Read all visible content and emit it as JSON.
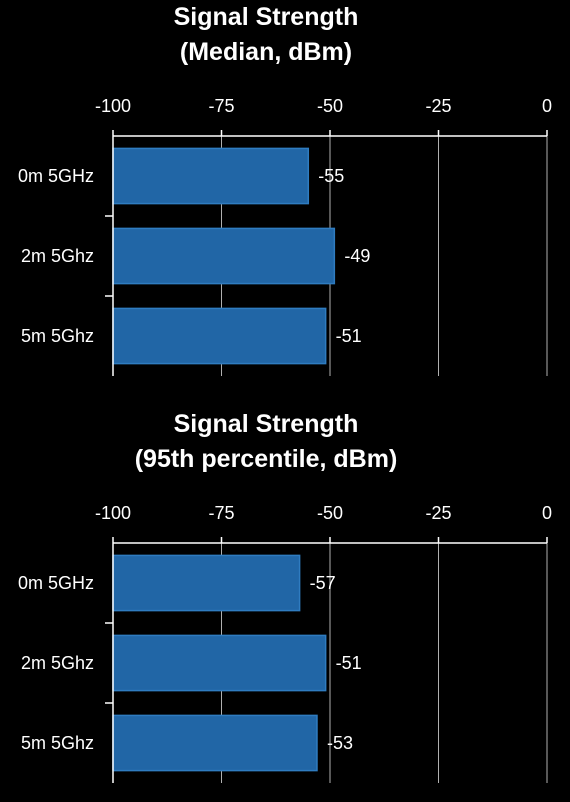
{
  "chart_data": [
    {
      "type": "bar",
      "orientation": "horizontal",
      "title_lines": [
        "Signal Strength",
        "(Median, dBm)"
      ],
      "categories": [
        "0m 5GHz",
        "2m 5Ghz",
        "5m 5Ghz"
      ],
      "values": [
        -55,
        -49,
        -51
      ],
      "value_labels": [
        "-55",
        "-49",
        "-51"
      ],
      "xlim": [
        -100,
        0
      ],
      "xticks": [
        -100,
        -75,
        -50,
        -25,
        0
      ],
      "xtick_labels": [
        "-100",
        "-75",
        "-50",
        "-25",
        "0"
      ],
      "x_axis_position": "top",
      "grid": true,
      "bar_color": "#2166a6"
    },
    {
      "type": "bar",
      "orientation": "horizontal",
      "title_lines": [
        "Signal Strength",
        "(95th percentile, dBm)"
      ],
      "categories": [
        "0m 5GHz",
        "2m 5Ghz",
        "5m 5Ghz"
      ],
      "values": [
        -57,
        -51,
        -53
      ],
      "value_labels": [
        "-57",
        "-51",
        "-53"
      ],
      "xlim": [
        -100,
        0
      ],
      "xticks": [
        -100,
        -75,
        -50,
        -25,
        0
      ],
      "xtick_labels": [
        "-100",
        "-75",
        "-50",
        "-25",
        "0"
      ],
      "x_axis_position": "top",
      "grid": true,
      "bar_color": "#2166a6"
    }
  ]
}
